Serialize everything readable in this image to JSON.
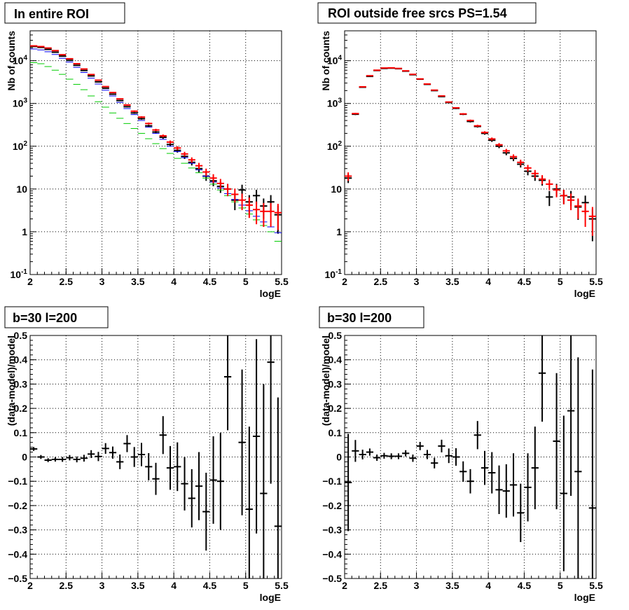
{
  "chart_data": [
    {
      "type": "scatter",
      "title": "In entire ROI",
      "xlabel": "logE",
      "ylabel": "Nb of counts",
      "xlim": [
        2,
        5.5
      ],
      "ylim": [
        0.1,
        50000
      ],
      "yscale": "log",
      "grid": true,
      "x_tick_labels": [
        "2",
        "2.5",
        "3",
        "3.5",
        "4",
        "4.5",
        "5",
        "5.5"
      ],
      "y_tick_labels": [
        "10^-1",
        "1",
        "10",
        "10^2",
        "10^3",
        "10^4"
      ],
      "bin_width": 0.1,
      "x": [
        2.05,
        2.15,
        2.25,
        2.35,
        2.45,
        2.55,
        2.65,
        2.75,
        2.85,
        2.95,
        3.05,
        3.15,
        3.25,
        3.35,
        3.45,
        3.55,
        3.65,
        3.75,
        3.85,
        3.95,
        4.05,
        4.15,
        4.25,
        4.35,
        4.45,
        4.55,
        4.65,
        4.75,
        4.85,
        4.95,
        5.05,
        5.15,
        5.25,
        5.35,
        5.45
      ],
      "series": [
        {
          "color": "#000000",
          "error_bars": true,
          "values": [
            21500,
            20500,
            18400,
            15800,
            12800,
            10200,
            7800,
            5900,
            4400,
            3200,
            2280,
            1650,
            1170,
            840,
            600,
            440,
            300,
            215,
            162,
            110,
            80,
            58,
            42,
            30,
            20,
            15.5,
            11.5,
            10,
            5.5,
            9.5,
            5,
            7,
            4,
            5,
            2.5
          ],
          "errors": [
            150,
            145,
            135,
            125,
            115,
            100,
            90,
            78,
            67,
            57,
            48,
            41,
            34,
            29,
            25,
            21,
            17,
            15,
            13,
            10.5,
            9,
            7.6,
            6.5,
            5.5,
            4.5,
            3.9,
            3.4,
            3.2,
            2.3,
            3.1,
            2.2,
            2.6,
            2,
            2.2,
            1.6
          ]
        },
        {
          "color": "#0000ff",
          "error_bars": false,
          "values": [
            18800,
            17900,
            16200,
            14000,
            11400,
            9300,
            7000,
            5300,
            3900,
            2850,
            2050,
            1500,
            1060,
            760,
            550,
            400,
            280,
            200,
            145,
            100,
            75,
            54,
            40,
            28,
            20,
            14.5,
            10.5,
            7.8,
            5.7,
            4.2,
            3.1,
            2.3,
            1.7,
            1.3,
            0.95
          ]
        },
        {
          "color": "#00cc00",
          "error_bars": false,
          "values": [
            9000,
            8500,
            7300,
            6000,
            4800,
            3700,
            2800,
            2100,
            1500,
            1100,
            820,
            600,
            450,
            340,
            260,
            200,
            150,
            115,
            88,
            68,
            52,
            40,
            31,
            24,
            18,
            13,
            9.5,
            7,
            5,
            3.6,
            2.6,
            1.9,
            1.4,
            1.0,
            0.6
          ]
        },
        {
          "color": "#ff0000",
          "error_bars": true,
          "values": [
            22200,
            21400,
            19800,
            17200,
            13800,
            11100,
            8500,
            6400,
            4750,
            3500,
            2480,
            1800,
            1280,
            920,
            660,
            480,
            340,
            240,
            175,
            125,
            91,
            66,
            48,
            35,
            25,
            18,
            13.5,
            10,
            7.5,
            5.5,
            4.2,
            3.3,
            3,
            3,
            2.8
          ],
          "errors": [
            150,
            146,
            140,
            131,
            117,
            105,
            92,
            80,
            69,
            59,
            50,
            42,
            36,
            30,
            26,
            22,
            18,
            15.5,
            13.2,
            11.2,
            9.5,
            8.1,
            6.9,
            5.9,
            5,
            4.2,
            3.7,
            3.2,
            2.7,
            2.3,
            2.1,
            1.8,
            1.7,
            1.7,
            1.7
          ]
        }
      ]
    },
    {
      "type": "scatter",
      "title": "ROI outside free srcs PS=1.54",
      "xlabel": "logE",
      "ylabel": "Nb of counts",
      "xlim": [
        2,
        5.5
      ],
      "ylim": [
        0.1,
        50000
      ],
      "yscale": "log",
      "grid": true,
      "x_tick_labels": [
        "2",
        "2.5",
        "3",
        "3.5",
        "4",
        "4.5",
        "5",
        "5.5"
      ],
      "y_tick_labels": [
        "10^-1",
        "1",
        "10",
        "10^2",
        "10^3",
        "10^4"
      ],
      "bin_width": 0.1,
      "x": [
        2.05,
        2.15,
        2.25,
        2.35,
        2.45,
        2.55,
        2.65,
        2.75,
        2.85,
        2.95,
        3.05,
        3.15,
        3.25,
        3.35,
        3.45,
        3.55,
        3.65,
        3.75,
        3.85,
        3.95,
        4.05,
        4.15,
        4.25,
        4.35,
        4.45,
        4.55,
        4.65,
        4.75,
        4.85,
        4.95,
        5.05,
        5.15,
        5.25,
        5.35,
        5.45
      ],
      "series": [
        {
          "color": "#000000",
          "error_bars": true,
          "values": [
            18,
            560,
            2400,
            4300,
            5900,
            6600,
            6700,
            6500,
            5700,
            4700,
            3700,
            2800,
            2000,
            1450,
            1050,
            770,
            560,
            380,
            290,
            200,
            138,
            100,
            70,
            52,
            38,
            26,
            20,
            16,
            6.5,
            10,
            7,
            6.5,
            3.8,
            4.8,
            2
          ],
          "errors": [
            4.2,
            24,
            49,
            66,
            77,
            81,
            82,
            81,
            75,
            69,
            61,
            53,
            45,
            38,
            32,
            28,
            24,
            19.5,
            17,
            14,
            11.7,
            10,
            8.4,
            7.2,
            6.2,
            5.1,
            4.5,
            4,
            2.5,
            3.2,
            2.6,
            2.5,
            1.9,
            2.2,
            1.4
          ]
        },
        {
          "color": "#ff0000",
          "error_bars": true,
          "values": [
            20,
            580,
            2450,
            4450,
            6000,
            6750,
            6800,
            6600,
            5800,
            4800,
            3750,
            2850,
            2050,
            1500,
            1080,
            790,
            570,
            400,
            300,
            210,
            148,
            108,
            78,
            57,
            42,
            31,
            23,
            17,
            13,
            9.5,
            7,
            5.5,
            4,
            3,
            2.3
          ],
          "errors": [
            4.5,
            24,
            50,
            67,
            78,
            82,
            82,
            81,
            76,
            69,
            61,
            53,
            45,
            39,
            33,
            28,
            24,
            20,
            17,
            14.5,
            12,
            10.4,
            8.8,
            7.5,
            6.5,
            5.6,
            4.8,
            4.1,
            3.6,
            3.1,
            2.6,
            2.3,
            2,
            1.7,
            1.5
          ]
        }
      ]
    },
    {
      "type": "scatter",
      "title": "b=30 l=200",
      "xlabel": "logE",
      "ylabel": "(data-model)/model",
      "xlim": [
        2,
        5.5
      ],
      "ylim": [
        -0.5,
        0.5
      ],
      "grid": true,
      "x_tick_labels": [
        "2",
        "2.5",
        "3",
        "3.5",
        "4",
        "4.5",
        "5",
        "5.5"
      ],
      "y_tick_labels": [
        "-0.5",
        "-0.4",
        "-0.3",
        "-0.2",
        "-0.1",
        "0",
        "0.1",
        "0.2",
        "0.3",
        "0.4",
        "0.5"
      ],
      "bin_width": 0.1,
      "series": [
        {
          "color": "#000000",
          "error_bars": true,
          "x": [
            2.05,
            2.15,
            2.25,
            2.35,
            2.45,
            2.55,
            2.65,
            2.75,
            2.85,
            2.95,
            3.05,
            3.15,
            3.25,
            3.35,
            3.45,
            3.55,
            3.65,
            3.75,
            3.85,
            3.95,
            4.05,
            4.15,
            4.25,
            4.35,
            4.45,
            4.55,
            4.65,
            4.75,
            4.85,
            4.95,
            5.05,
            5.15,
            5.25,
            5.35,
            5.45
          ],
          "values": [
            0.033,
            0.0,
            -0.013,
            -0.01,
            -0.01,
            -0.003,
            -0.01,
            -0.005,
            0.012,
            0.002,
            0.035,
            0.018,
            -0.02,
            0.055,
            0.0,
            0.01,
            -0.04,
            -0.09,
            0.09,
            -0.045,
            -0.04,
            -0.11,
            -0.17,
            -0.12,
            -0.225,
            -0.095,
            -0.1,
            0.33,
            null,
            0.06,
            -0.215,
            0.085,
            -0.15,
            0.39,
            -0.285
          ],
          "errors": [
            0.008,
            0.008,
            0.008,
            0.009,
            0.01,
            0.011,
            0.012,
            0.014,
            0.016,
            0.019,
            0.022,
            0.025,
            0.03,
            0.035,
            0.041,
            0.048,
            0.056,
            0.066,
            0.078,
            0.09,
            0.1,
            0.11,
            0.12,
            0.14,
            0.16,
            0.18,
            0.2,
            0.22,
            null,
            0.3,
            0.34,
            0.4,
            0.45,
            0.5,
            0.53
          ]
        }
      ]
    },
    {
      "type": "scatter",
      "title": "b=30 l=200",
      "xlabel": "logE",
      "ylabel": "(data-model)/model",
      "xlim": [
        2,
        5.5
      ],
      "ylim": [
        -0.5,
        0.5
      ],
      "grid": true,
      "x_tick_labels": [
        "2",
        "2.5",
        "3",
        "3.5",
        "4",
        "4.5",
        "5",
        "5.5"
      ],
      "y_tick_labels": [
        "-0.5",
        "-0.4",
        "-0.3",
        "-0.2",
        "-0.1",
        "0",
        "0.1",
        "0.2",
        "0.3",
        "0.4",
        "0.5"
      ],
      "bin_width": 0.1,
      "series": [
        {
          "color": "#000000",
          "error_bars": true,
          "x": [
            2.05,
            2.15,
            2.25,
            2.35,
            2.45,
            2.55,
            2.65,
            2.75,
            2.85,
            2.95,
            3.05,
            3.15,
            3.25,
            3.35,
            3.45,
            3.55,
            3.65,
            3.75,
            3.85,
            3.95,
            4.05,
            4.15,
            4.25,
            4.35,
            4.45,
            4.55,
            4.65,
            4.75,
            4.85,
            4.95,
            5.05,
            5.15,
            5.25,
            5.35,
            5.45
          ],
          "values": [
            -0.105,
            0.025,
            0.01,
            0.02,
            -0.003,
            0.005,
            0.003,
            0.003,
            0.015,
            -0.005,
            0.045,
            0.01,
            -0.025,
            0.045,
            0.005,
            0.0,
            -0.06,
            -0.1,
            0.09,
            -0.045,
            -0.065,
            -0.135,
            -0.14,
            -0.115,
            -0.23,
            -0.125,
            -0.045,
            0.345,
            null,
            0.065,
            -0.15,
            0.19,
            -0.06,
            null,
            -0.21
          ],
          "errors": [
            0.2,
            0.045,
            0.02,
            0.015,
            0.013,
            0.012,
            0.012,
            0.012,
            0.013,
            0.015,
            0.017,
            0.019,
            0.022,
            0.026,
            0.03,
            0.036,
            0.042,
            0.05,
            0.058,
            0.07,
            0.085,
            0.1,
            0.11,
            0.13,
            0.12,
            0.14,
            0.17,
            0.2,
            null,
            0.28,
            0.32,
            0.35,
            0.47,
            null,
            0.57
          ]
        }
      ]
    }
  ]
}
